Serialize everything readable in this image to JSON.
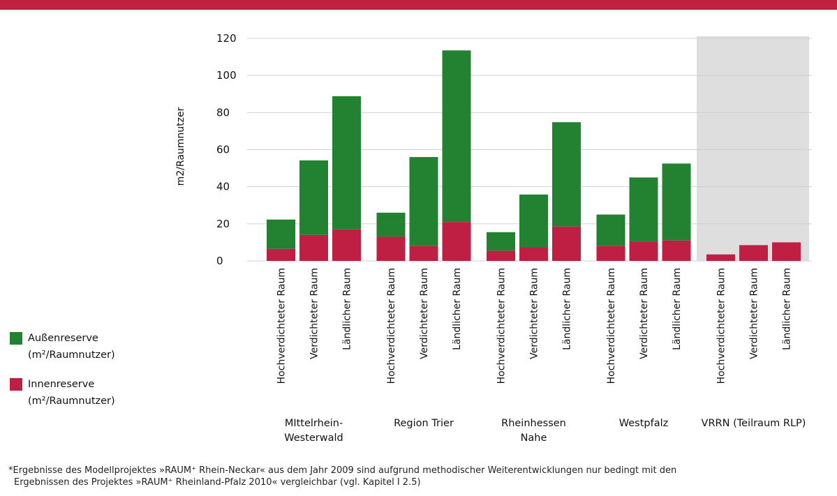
{
  "colors": {
    "top_bar": "#c0213f",
    "aussen": "#238232",
    "innen": "#bf1f42",
    "highlight_bg": "#dedede",
    "grid": "#d0d0d0"
  },
  "chart_data": {
    "type": "bar",
    "stacked": true,
    "ylabel": "m2/Raumnutzer",
    "ylim": [
      0,
      120
    ],
    "yticks": [
      0,
      20,
      40,
      60,
      80,
      100,
      120
    ],
    "grid": true,
    "categories": [
      "Hochverdichteter Raum",
      "Verdichteter Raum",
      "Ländlicher Raum"
    ],
    "groups": [
      {
        "label": [
          "MIttelrhein-",
          "Westerwald"
        ],
        "innen": [
          6.5,
          14,
          17
        ],
        "aussen": [
          15.8,
          40.2,
          71.8
        ]
      },
      {
        "label": [
          "Region Trier"
        ],
        "innen": [
          13,
          8,
          21
        ],
        "aussen": [
          13,
          48,
          92.5
        ]
      },
      {
        "label": [
          "Rheinhessen",
          "Nahe"
        ],
        "innen": [
          5.5,
          7.5,
          18.5
        ],
        "aussen": [
          10,
          28.3,
          56.3
        ]
      },
      {
        "label": [
          "Westpfalz"
        ],
        "innen": [
          8,
          10.5,
          11
        ],
        "aussen": [
          17,
          34.5,
          41.5
        ]
      },
      {
        "label": [
          "VRRN (Teilraum RLP)"
        ],
        "innen": [
          3.5,
          8.5,
          10
        ],
        "aussen": [
          0,
          0,
          0
        ],
        "highlight": true
      }
    ],
    "series": [
      {
        "key": "aussen",
        "name": [
          "Außenreserve",
          "(m²/Raumnutzer)"
        ],
        "color": "#238232"
      },
      {
        "key": "innen",
        "name": [
          "Innenreserve",
          "(m²/Raumnutzer)"
        ],
        "color": "#bf1f42"
      }
    ]
  },
  "legend": {
    "aussen_line1": "Außenreserve",
    "aussen_line2": "(m²/Raumnutzer)",
    "innen_line1": "Innenreserve",
    "innen_line2": "(m²/Raumnutzer)"
  },
  "footnote": {
    "line1": "*Ergebnisse des Modellprojektes »RAUM⁺ Rhein-Neckar« aus dem Jahr 2009 sind aufgrund methodischer Weiterentwicklungen nur bedingt mit den",
    "line2": "Ergebnissen des Projektes »RAUM⁺ Rheinland-Pfalz 2010« vergleichbar (vgl. Kapitel I 2.5)"
  }
}
